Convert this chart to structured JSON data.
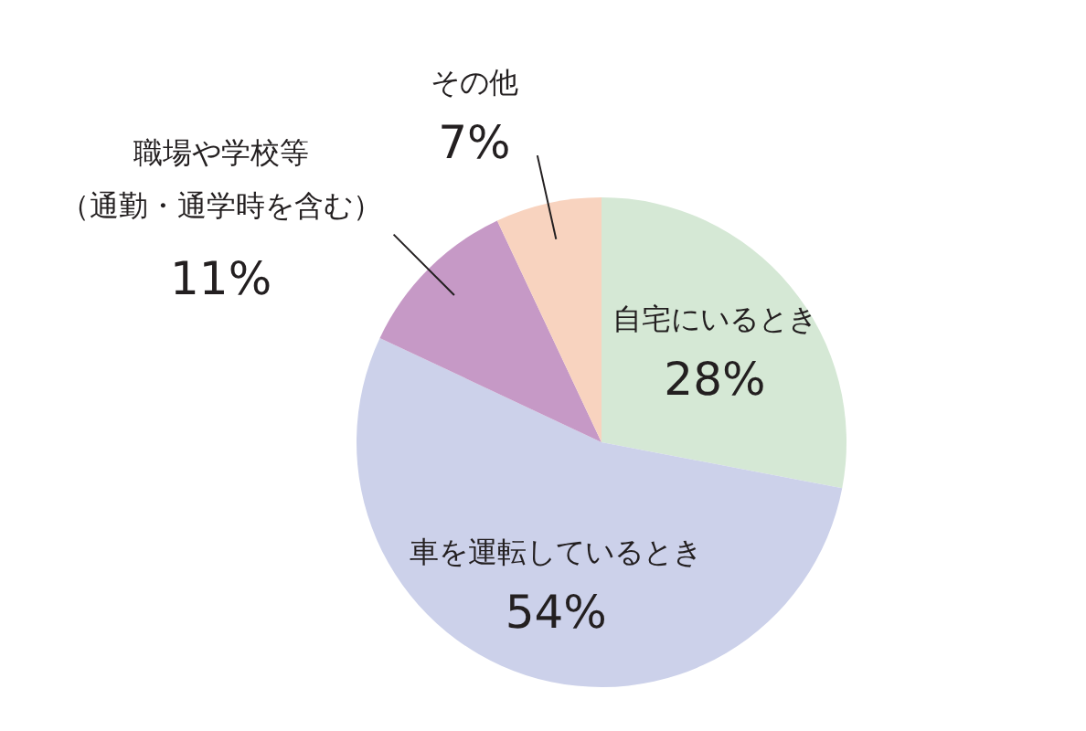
{
  "chart_data": {
    "type": "pie",
    "categories": [
      "自宅にいるとき",
      "車を運転しているとき",
      "職場や学校等（通勤・通学時を含む）",
      "その他"
    ],
    "values": [
      28,
      54,
      11,
      7
    ],
    "colors": [
      "#d5e8d5",
      "#ccd1ea",
      "#c699c6",
      "#f8d3bf"
    ],
    "value_labels": [
      "28%",
      "54%",
      "11%",
      "7%"
    ]
  }
}
